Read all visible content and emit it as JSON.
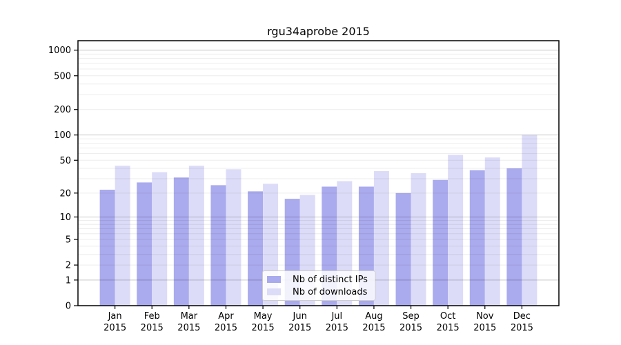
{
  "figure": {
    "title": "rgu34aprobe 2015"
  },
  "chart_data": {
    "type": "bar",
    "title": "rgu34aprobe 2015",
    "categories": [
      "Jan 2015",
      "Feb 2015",
      "Mar 2015",
      "Apr 2015",
      "May 2015",
      "Jun 2015",
      "Jul 2015",
      "Aug 2015",
      "Sep 2015",
      "Oct 2015",
      "Nov 2015",
      "Dec 2015"
    ],
    "series": [
      {
        "name": "Nb of distinct IPs",
        "color": "#aaaaee",
        "values": [
          22,
          27,
          31,
          25,
          21,
          17,
          24,
          24,
          20,
          29,
          38,
          40
        ]
      },
      {
        "name": "Nb of downloads",
        "color": "#dcdcf8",
        "values": [
          43,
          36,
          43,
          39,
          26,
          19,
          28,
          37,
          35,
          58,
          54,
          100
        ]
      }
    ],
    "xlabel": "",
    "ylabel": "",
    "yscale": "symlog",
    "yticks": [
      0,
      1,
      2,
      5,
      10,
      20,
      50,
      100,
      200,
      500,
      1000
    ],
    "ylim": [
      0,
      1270
    ],
    "grid": "on",
    "legend_position": "lower center",
    "axis_color": "#000000",
    "major_grid_color": "#c8c8c8",
    "minor_grid_color": "#ebebeb"
  }
}
